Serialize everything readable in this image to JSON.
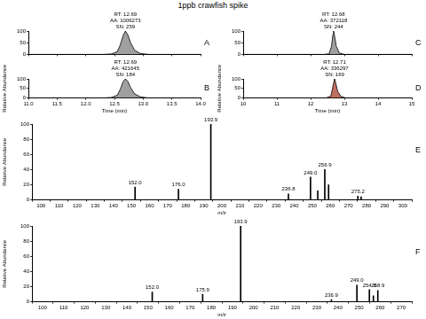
{
  "title": "1ppb crawfish spike",
  "chart_data": [
    {
      "type": "line",
      "panel_label": "A",
      "x": [
        11.0,
        12.3,
        12.45,
        12.55,
        12.6,
        12.65,
        12.69,
        12.73,
        12.78,
        12.85,
        12.95,
        13.1,
        14.0
      ],
      "values": [
        0,
        0,
        2,
        12,
        40,
        80,
        100,
        85,
        50,
        18,
        4,
        0,
        0
      ],
      "color": "#a0a0a0",
      "xlim": [
        11,
        14
      ],
      "xticks": [
        {
          "value": 11,
          "label": "11.0"
        },
        {
          "value": 11.5,
          "label": "11.5"
        },
        {
          "value": 12,
          "label": "12.0"
        },
        {
          "value": 12.5,
          "label": "12.5"
        },
        {
          "value": 13,
          "label": "13.0"
        },
        {
          "value": 13.5,
          "label": "13.5"
        },
        {
          "value": 14,
          "label": "14.0"
        }
      ],
      "ylim": [
        0,
        100
      ],
      "yticks": [
        0,
        50,
        100
      ],
      "grid": false,
      "tick_labels": "y",
      "annotations": [
        {
          "x": 12.69,
          "y": 100,
          "text": [
            "RT: 12.69",
            "AA: 1006273",
            "SN: 259"
          ]
        }
      ]
    },
    {
      "type": "line",
      "panel_label": "B",
      "x": [
        11.0,
        12.3,
        12.45,
        12.55,
        12.6,
        12.65,
        12.69,
        12.73,
        12.78,
        12.85,
        12.95,
        13.1,
        14.0
      ],
      "values": [
        0,
        0,
        3,
        15,
        45,
        85,
        100,
        88,
        55,
        22,
        6,
        0,
        0
      ],
      "color": "#a0a0a0",
      "xlim": [
        11,
        14
      ],
      "xticks": [
        {
          "value": 11,
          "label": "11.0"
        },
        {
          "value": 11.5,
          "label": "11.5"
        },
        {
          "value": 12,
          "label": "12.0"
        },
        {
          "value": 12.5,
          "label": "12.5"
        },
        {
          "value": 13,
          "label": "13.0"
        },
        {
          "value": 13.5,
          "label": "13.5"
        },
        {
          "value": 14,
          "label": "14.0"
        }
      ],
      "ylim": [
        0,
        100
      ],
      "yticks": [
        0,
        50,
        100
      ],
      "grid": false,
      "xlabel": "Time (min)",
      "ylabel": "Relative Abundance",
      "annotations": [
        {
          "x": 12.69,
          "y": 100,
          "text": [
            "RT: 12.69",
            "AA: 421645",
            "SN: 184"
          ]
        }
      ]
    },
    {
      "type": "line",
      "panel_label": "C",
      "x": [
        10,
        12.4,
        12.55,
        12.62,
        12.66,
        12.68,
        12.71,
        12.76,
        12.85,
        13.0,
        15
      ],
      "values": [
        0,
        0,
        3,
        35,
        85,
        100,
        80,
        35,
        6,
        0,
        0
      ],
      "color": "#a0a0a0",
      "xlim": [
        10,
        15
      ],
      "xticks": [
        10,
        11,
        12,
        13,
        14,
        15
      ],
      "ylim": [
        0,
        100
      ],
      "yticks": [
        0,
        50,
        100
      ],
      "grid": false,
      "tick_labels": "y",
      "annotations": [
        {
          "x": 12.68,
          "y": 100,
          "text": [
            "RT: 12.68",
            "AA: 372118",
            "SN: 244"
          ]
        }
      ]
    },
    {
      "type": "line",
      "panel_label": "D",
      "x": [
        10,
        12.45,
        12.6,
        12.66,
        12.71,
        12.75,
        12.8,
        12.9,
        13.05,
        15
      ],
      "values": [
        0,
        0,
        10,
        60,
        100,
        75,
        35,
        8,
        0,
        0
      ],
      "color": "#c07060",
      "xlim": [
        10,
        15
      ],
      "xticks": [
        10,
        11,
        12,
        13,
        14,
        15
      ],
      "ylim": [
        0,
        100
      ],
      "yticks": [
        0,
        50,
        100
      ],
      "grid": false,
      "xlabel": "Time (min)",
      "ylabel": "Relative Abundance",
      "annotations": [
        {
          "x": 12.71,
          "y": 100,
          "text": [
            "RT: 12.71",
            "AA: 336297",
            "SN: 169"
          ]
        }
      ]
    },
    {
      "type": "bar",
      "panel_label": "E",
      "x": [
        152.0,
        176.0,
        193.9,
        236.8,
        249.0,
        253.0,
        256.9,
        259.0,
        275.2,
        277.0
      ],
      "values": [
        17,
        14,
        100,
        8,
        30,
        12,
        40,
        20,
        5,
        4
      ],
      "color": "#000000",
      "xlim": [
        100,
        300
      ],
      "xticks": [
        100,
        110,
        120,
        130,
        140,
        150,
        160,
        170,
        180,
        190,
        200,
        210,
        220,
        230,
        240,
        250,
        260,
        270,
        280,
        290,
        300
      ],
      "ylim": [
        0,
        100
      ],
      "yticks": [
        0,
        20,
        40,
        60,
        80,
        100
      ],
      "grid": false,
      "xlabel": "m/z",
      "ylabel": "Relative Abundance",
      "annotations": [
        {
          "x": 152.0,
          "y": 17,
          "text": [
            "152.0"
          ]
        },
        {
          "x": 176.0,
          "y": 14,
          "text": [
            "176.0"
          ]
        },
        {
          "x": 193.9,
          "y": 100,
          "text": [
            "193.9"
          ]
        },
        {
          "x": 236.8,
          "y": 8,
          "text": [
            "236.8"
          ]
        },
        {
          "x": 249.0,
          "y": 30,
          "text": [
            "249.0"
          ]
        },
        {
          "x": 256.9,
          "y": 40,
          "text": [
            "256.9"
          ]
        },
        {
          "x": 275.2,
          "y": 5,
          "text": [
            "275.2"
          ]
        }
      ]
    },
    {
      "type": "bar",
      "panel_label": "F",
      "x": [
        152.0,
        175.9,
        193.9,
        236.9,
        249.0,
        254.9,
        256.8,
        258.9
      ],
      "values": [
        13,
        10,
        100,
        3,
        22,
        16,
        8,
        15
      ],
      "color": "#000000",
      "xlim": [
        100,
        270
      ],
      "xticks": [
        100,
        110,
        120,
        130,
        140,
        150,
        160,
        170,
        180,
        190,
        200,
        210,
        220,
        230,
        240,
        250,
        260,
        270
      ],
      "ylim": [
        0,
        100
      ],
      "yticks": [
        0,
        20,
        40,
        60,
        80,
        100
      ],
      "grid": false,
      "xlabel": "m/z",
      "ylabel": "Relative Abundance",
      "annotations": [
        {
          "x": 152.0,
          "y": 13,
          "text": [
            "152.0"
          ]
        },
        {
          "x": 175.9,
          "y": 10,
          "text": [
            "175.9"
          ]
        },
        {
          "x": 193.9,
          "y": 100,
          "text": [
            "193.9"
          ]
        },
        {
          "x": 236.9,
          "y": 3,
          "text": [
            "236.9"
          ]
        },
        {
          "x": 249.0,
          "y": 22,
          "text": [
            "249.0"
          ]
        },
        {
          "x": 254.9,
          "y": 16,
          "text": [
            "254.9"
          ]
        },
        {
          "x": 258.9,
          "y": 15,
          "text": [
            "258.9"
          ]
        }
      ]
    }
  ]
}
